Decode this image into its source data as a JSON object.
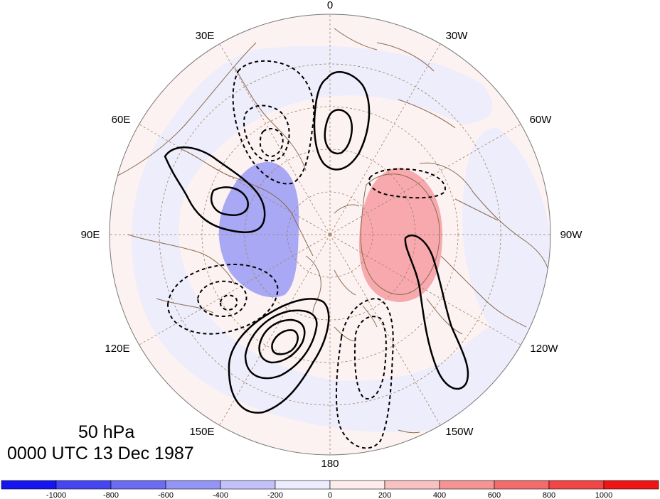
{
  "plot": {
    "level": "50 hPa",
    "time": "0000 UTC 13 Dec 1987"
  },
  "longitude_labels": [
    "0",
    "30W",
    "60W",
    "90W",
    "120W",
    "150W",
    "180",
    "150E",
    "120E",
    "90E",
    "60E",
    "30E"
  ],
  "colorbar": {
    "ticks": [
      "-1000",
      "-800",
      "-600",
      "-400",
      "-200",
      "0",
      "200",
      "400",
      "600",
      "800",
      "1000"
    ],
    "colors": [
      "#1515f0",
      "#4545f2",
      "#6b6bf3",
      "#9494f6",
      "#c2c2f8",
      "#ececfd",
      "#fdecec",
      "#f8c2c2",
      "#f69494",
      "#f36b6b",
      "#f24545",
      "#f01515"
    ]
  },
  "colors": {
    "ocean_background": "#fdf2f2",
    "blue_ring": "#ededfb",
    "pos_anomaly": "#f7a9ad",
    "neg_anomaly": "#a8a8f4",
    "coastline": "#8b6b4f",
    "graticule": "#a08060"
  }
}
